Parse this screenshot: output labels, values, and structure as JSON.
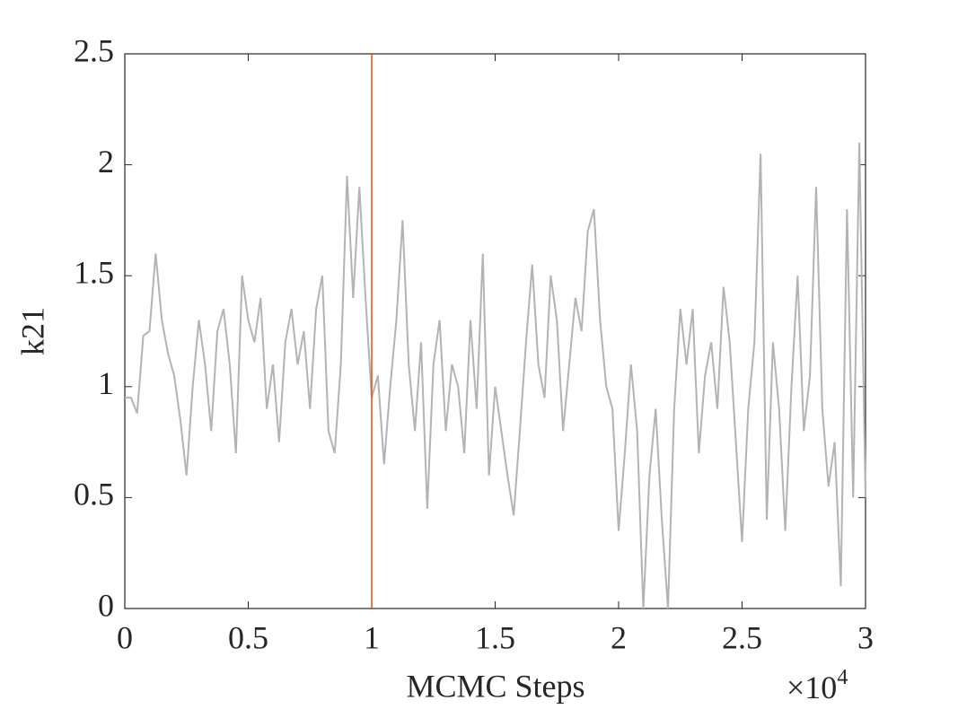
{
  "chart_data": {
    "type": "line",
    "xlabel": "MCMC Steps",
    "ylabel": "k21",
    "x_multiplier": "×10",
    "x_multiplier_exponent": "4",
    "xlim": [
      0,
      3
    ],
    "ylim": [
      0,
      2.5
    ],
    "xticks": [
      0,
      0.5,
      1,
      1.5,
      2,
      2.5,
      3
    ],
    "yticks": [
      0,
      0.5,
      1,
      1.5,
      2,
      2.5
    ],
    "grid": false,
    "reference_lines": [
      {
        "x": 1,
        "color": "#d95319"
      }
    ],
    "series": [
      {
        "color": "#b3b3b3",
        "x": [
          0,
          0.025,
          0.05,
          0.075,
          0.1,
          0.125,
          0.15,
          0.175,
          0.2,
          0.225,
          0.25,
          0.275,
          0.3,
          0.325,
          0.35,
          0.375,
          0.4,
          0.425,
          0.45,
          0.475,
          0.5,
          0.525,
          0.55,
          0.575,
          0.6,
          0.625,
          0.65,
          0.675,
          0.7,
          0.725,
          0.75,
          0.775,
          0.8,
          0.825,
          0.85,
          0.875,
          0.9,
          0.925,
          0.95,
          0.975,
          1.0,
          1.025,
          1.05,
          1.075,
          1.1,
          1.125,
          1.15,
          1.175,
          1.2,
          1.225,
          1.25,
          1.275,
          1.3,
          1.325,
          1.35,
          1.375,
          1.4,
          1.425,
          1.45,
          1.475,
          1.5,
          1.525,
          1.55,
          1.575,
          1.6,
          1.625,
          1.65,
          1.675,
          1.7,
          1.725,
          1.75,
          1.775,
          1.8,
          1.825,
          1.85,
          1.875,
          1.9,
          1.925,
          1.95,
          1.975,
          2.0,
          2.025,
          2.05,
          2.075,
          2.1,
          2.125,
          2.15,
          2.175,
          2.2,
          2.225,
          2.25,
          2.275,
          2.3,
          2.325,
          2.35,
          2.375,
          2.4,
          2.425,
          2.45,
          2.475,
          2.5,
          2.525,
          2.55,
          2.575,
          2.6,
          2.625,
          2.65,
          2.675,
          2.7,
          2.725,
          2.75,
          2.775,
          2.8,
          2.825,
          2.85,
          2.875,
          2.9,
          2.925,
          2.95,
          2.975,
          3.0
        ],
        "values": [
          0.95,
          0.95,
          0.88,
          1.23,
          1.25,
          1.6,
          1.3,
          1.15,
          1.05,
          0.85,
          0.6,
          1.0,
          1.3,
          1.1,
          0.8,
          1.25,
          1.35,
          1.1,
          0.7,
          1.5,
          1.3,
          1.2,
          1.4,
          0.9,
          1.1,
          0.75,
          1.2,
          1.35,
          1.1,
          1.25,
          0.9,
          1.35,
          1.5,
          0.8,
          0.7,
          1.1,
          1.95,
          1.4,
          1.9,
          1.4,
          0.95,
          1.05,
          0.65,
          1.0,
          1.3,
          1.75,
          1.1,
          0.8,
          1.2,
          0.45,
          1.1,
          1.3,
          0.8,
          1.1,
          1.0,
          0.7,
          1.3,
          0.9,
          1.6,
          0.6,
          1.0,
          0.8,
          0.6,
          0.42,
          0.8,
          1.2,
          1.55,
          1.1,
          0.95,
          1.5,
          1.3,
          0.8,
          1.1,
          1.4,
          1.25,
          1.7,
          1.8,
          1.3,
          1.0,
          0.9,
          0.35,
          0.7,
          1.1,
          0.8,
          0.0,
          0.6,
          0.9,
          0.4,
          0.0,
          0.9,
          1.35,
          1.1,
          1.35,
          0.7,
          1.05,
          1.2,
          0.9,
          1.45,
          1.2,
          0.75,
          0.3,
          0.9,
          1.2,
          2.05,
          0.4,
          1.2,
          0.9,
          0.35,
          1.0,
          1.5,
          0.8,
          1.05,
          1.9,
          0.9,
          0.55,
          0.75,
          0.1,
          1.8,
          0.5,
          2.1,
          0.5
        ]
      }
    ]
  }
}
